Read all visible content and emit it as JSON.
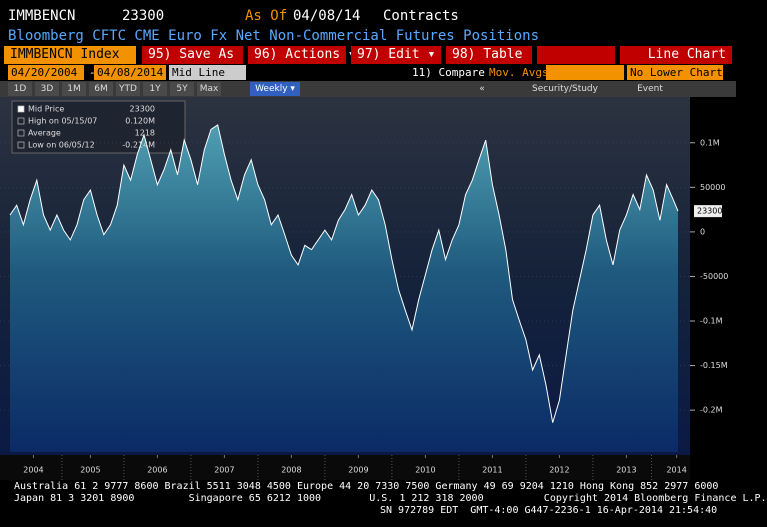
{
  "header": {
    "ticker": "IMMBENCN",
    "price": "23300",
    "as_of_label": "As Of",
    "as_of_date": "04/08/14",
    "units": "Contracts",
    "subtitle": "Bloomberg CFTC CME Euro Fx Net Non-Commercial Futures Positions"
  },
  "menu": {
    "security": "IMMBENCN Index",
    "save": "95) Save As",
    "actions": "96) Actions ▾",
    "edit": "97) Edit ▾",
    "table": "98) Table",
    "view": "Line Chart"
  },
  "toolbar": {
    "start": "04/20/2004",
    "dash": "-",
    "end": "04/08/2014",
    "line": "Mid Line",
    "compare": "11) Compare",
    "avgs": "Mov. Avgs",
    "lower": "No Lower Chart"
  },
  "periods": {
    "items": [
      "1D",
      "3D",
      "1M",
      "6M",
      "YTD",
      "1Y",
      "5Y",
      "Max"
    ],
    "frequency": "Weekly ▾",
    "collapse": "«",
    "study": "Security/Study",
    "event": "Event"
  },
  "chart_data": {
    "type": "area",
    "x": [
      2004.3,
      2004.4,
      2004.5,
      2004.6,
      2004.7,
      2004.8,
      2004.9,
      2005.0,
      2005.1,
      2005.2,
      2005.3,
      2005.4,
      2005.5,
      2005.6,
      2005.7,
      2005.8,
      2005.9,
      2006.0,
      2006.1,
      2006.2,
      2006.3,
      2006.4,
      2006.5,
      2006.6,
      2006.7,
      2006.8,
      2006.9,
      2007.0,
      2007.1,
      2007.2,
      2007.3,
      2007.4,
      2007.5,
      2007.6,
      2007.7,
      2007.8,
      2007.9,
      2008.0,
      2008.1,
      2008.2,
      2008.3,
      2008.4,
      2008.5,
      2008.6,
      2008.7,
      2008.8,
      2008.9,
      2009.0,
      2009.1,
      2009.2,
      2009.3,
      2009.4,
      2009.5,
      2009.6,
      2009.7,
      2009.8,
      2009.9,
      2010.0,
      2010.1,
      2010.2,
      2010.3,
      2010.4,
      2010.5,
      2010.6,
      2010.7,
      2010.8,
      2010.9,
      2011.0,
      2011.1,
      2011.2,
      2011.3,
      2011.4,
      2011.5,
      2011.6,
      2011.7,
      2011.8,
      2011.9,
      2012.0,
      2012.1,
      2012.2,
      2012.3,
      2012.4,
      2012.5,
      2012.6,
      2012.7,
      2012.8,
      2012.9,
      2013.0,
      2013.1,
      2013.2,
      2013.3,
      2013.4,
      2013.5,
      2013.6,
      2013.7,
      2013.8,
      2013.9,
      2014.0,
      2014.1,
      2014.2,
      2014.27
    ],
    "series": [
      {
        "name": "Mid Price",
        "color": "#ffffff",
        "values": [
          19000,
          30000,
          8000,
          36000,
          58000,
          19000,
          2000,
          19000,
          2000,
          -9000,
          8000,
          36000,
          47000,
          19000,
          -3000,
          8000,
          30000,
          75000,
          58000,
          87000,
          109000,
          81000,
          53000,
          70000,
          92000,
          64000,
          103000,
          81000,
          53000,
          92000,
          115000,
          120000,
          87000,
          58000,
          36000,
          64000,
          81000,
          53000,
          36000,
          8000,
          19000,
          -3000,
          -26000,
          -37000,
          -15000,
          -20000,
          -9000,
          2000,
          -9000,
          13000,
          25000,
          42000,
          19000,
          30000,
          47000,
          36000,
          8000,
          -31000,
          -65000,
          -88000,
          -110000,
          -76000,
          -48000,
          -20000,
          2000,
          -31000,
          -9000,
          8000,
          42000,
          58000,
          81000,
          103000,
          53000,
          19000,
          -20000,
          -76000,
          -99000,
          -121000,
          -155000,
          -138000,
          -172000,
          -214000,
          -189000,
          -138000,
          -88000,
          -54000,
          -20000,
          19000,
          30000,
          -9000,
          -37000,
          2000,
          19000,
          42000,
          25000,
          64000,
          47000,
          13000,
          53000,
          36000,
          23300
        ]
      }
    ],
    "stats": [
      {
        "label": "High on 05/15/07",
        "value": 120000,
        "value_label": "0.120M"
      },
      {
        "label": "Average",
        "value": 1218
      },
      {
        "label": "Low on 06/05/12",
        "value": -214000,
        "value_label": "-0.214M"
      }
    ],
    "xlim": [
      2004.3,
      2014.3
    ],
    "xticks": [
      {
        "value": 2004.65,
        "label": "2004"
      },
      {
        "value": 2005.5,
        "label": "2005"
      },
      {
        "value": 2006.5,
        "label": "2006"
      },
      {
        "value": 2007.5,
        "label": "2007"
      },
      {
        "value": 2008.5,
        "label": "2008"
      },
      {
        "value": 2009.5,
        "label": "2009"
      },
      {
        "value": 2010.5,
        "label": "2010"
      },
      {
        "value": 2011.5,
        "label": "2011"
      },
      {
        "value": 2012.5,
        "label": "2012"
      },
      {
        "value": 2013.5,
        "label": "2013"
      },
      {
        "value": 2014.25,
        "label": "2014"
      }
    ],
    "ylim": [
      -247000,
      148000
    ],
    "yticks": [
      {
        "value": 100000,
        "label": "0.1M"
      },
      50000,
      0,
      -50000,
      {
        "value": -100000,
        "label": "-0.1M"
      },
      {
        "value": -150000,
        "label": "-0.15M"
      },
      {
        "value": -200000,
        "label": "-0.2M"
      }
    ],
    "grid": true
  },
  "footer": [
    "Australia 61 2 9777 8600 Brazil 5511 3048 4500 Europe 44 20 7330 7500 Germany 49 69 9204 1210 Hong Kong 852 2977 6000",
    "Japan 81 3 3201 8900         Singapore 65 6212 1000        U.S. 1 212 318 2000          Copyright 2014 Bloomberg Finance L.P.",
    "SN 972789 EDT  GMT-4:00 G447-2236-1 16-Apr-2014 21:54:40"
  ]
}
